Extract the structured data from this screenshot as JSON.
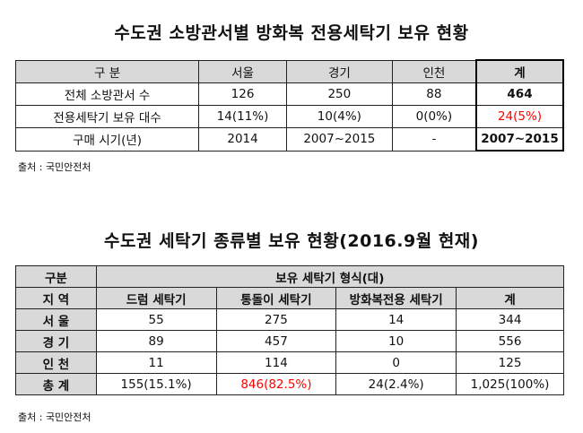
{
  "table1": {
    "title": "수도권 소방관서별 방화복 전용세탁기 보유 현황",
    "headers": [
      "구  분",
      "서울",
      "경기",
      "인천",
      "계"
    ],
    "rows": [
      [
        "전체 소방관서 수",
        "126",
        "250",
        "88",
        "464"
      ],
      [
        "전용세탁기 보유 대수",
        "14(11%)",
        "10(4%)",
        "0(0%)",
        "24(5%)"
      ],
      [
        "구매 시기(년)",
        "2014",
        "2007~2015",
        "-",
        "2007~2015"
      ]
    ],
    "source": "출처 : 국민안전처"
  },
  "table2": {
    "title": "수도권 세탁기 종류별 보유 현황(2016.9월 현재)",
    "header_row1": [
      "구분",
      "보유 세탁기 형식(대)"
    ],
    "header_row2": [
      "지 역",
      "드럼 세탁기",
      "통돌이 세탁기",
      "방화복전용 세탁기",
      "계"
    ],
    "rows": [
      [
        "서 울",
        "55",
        "275",
        "14",
        "344"
      ],
      [
        "경 기",
        "89",
        "457",
        "10",
        "556"
      ],
      [
        "인 천",
        "11",
        "114",
        "0",
        "125"
      ],
      [
        "총 계",
        "155(15.1%)",
        "846(82.5%)",
        "24(2.4%)",
        "1,025(100%)"
      ]
    ],
    "source": "출처 : 국민안전처"
  },
  "colors": {
    "header_bg": "#d9d9d9",
    "highlight": "#ff0000"
  }
}
